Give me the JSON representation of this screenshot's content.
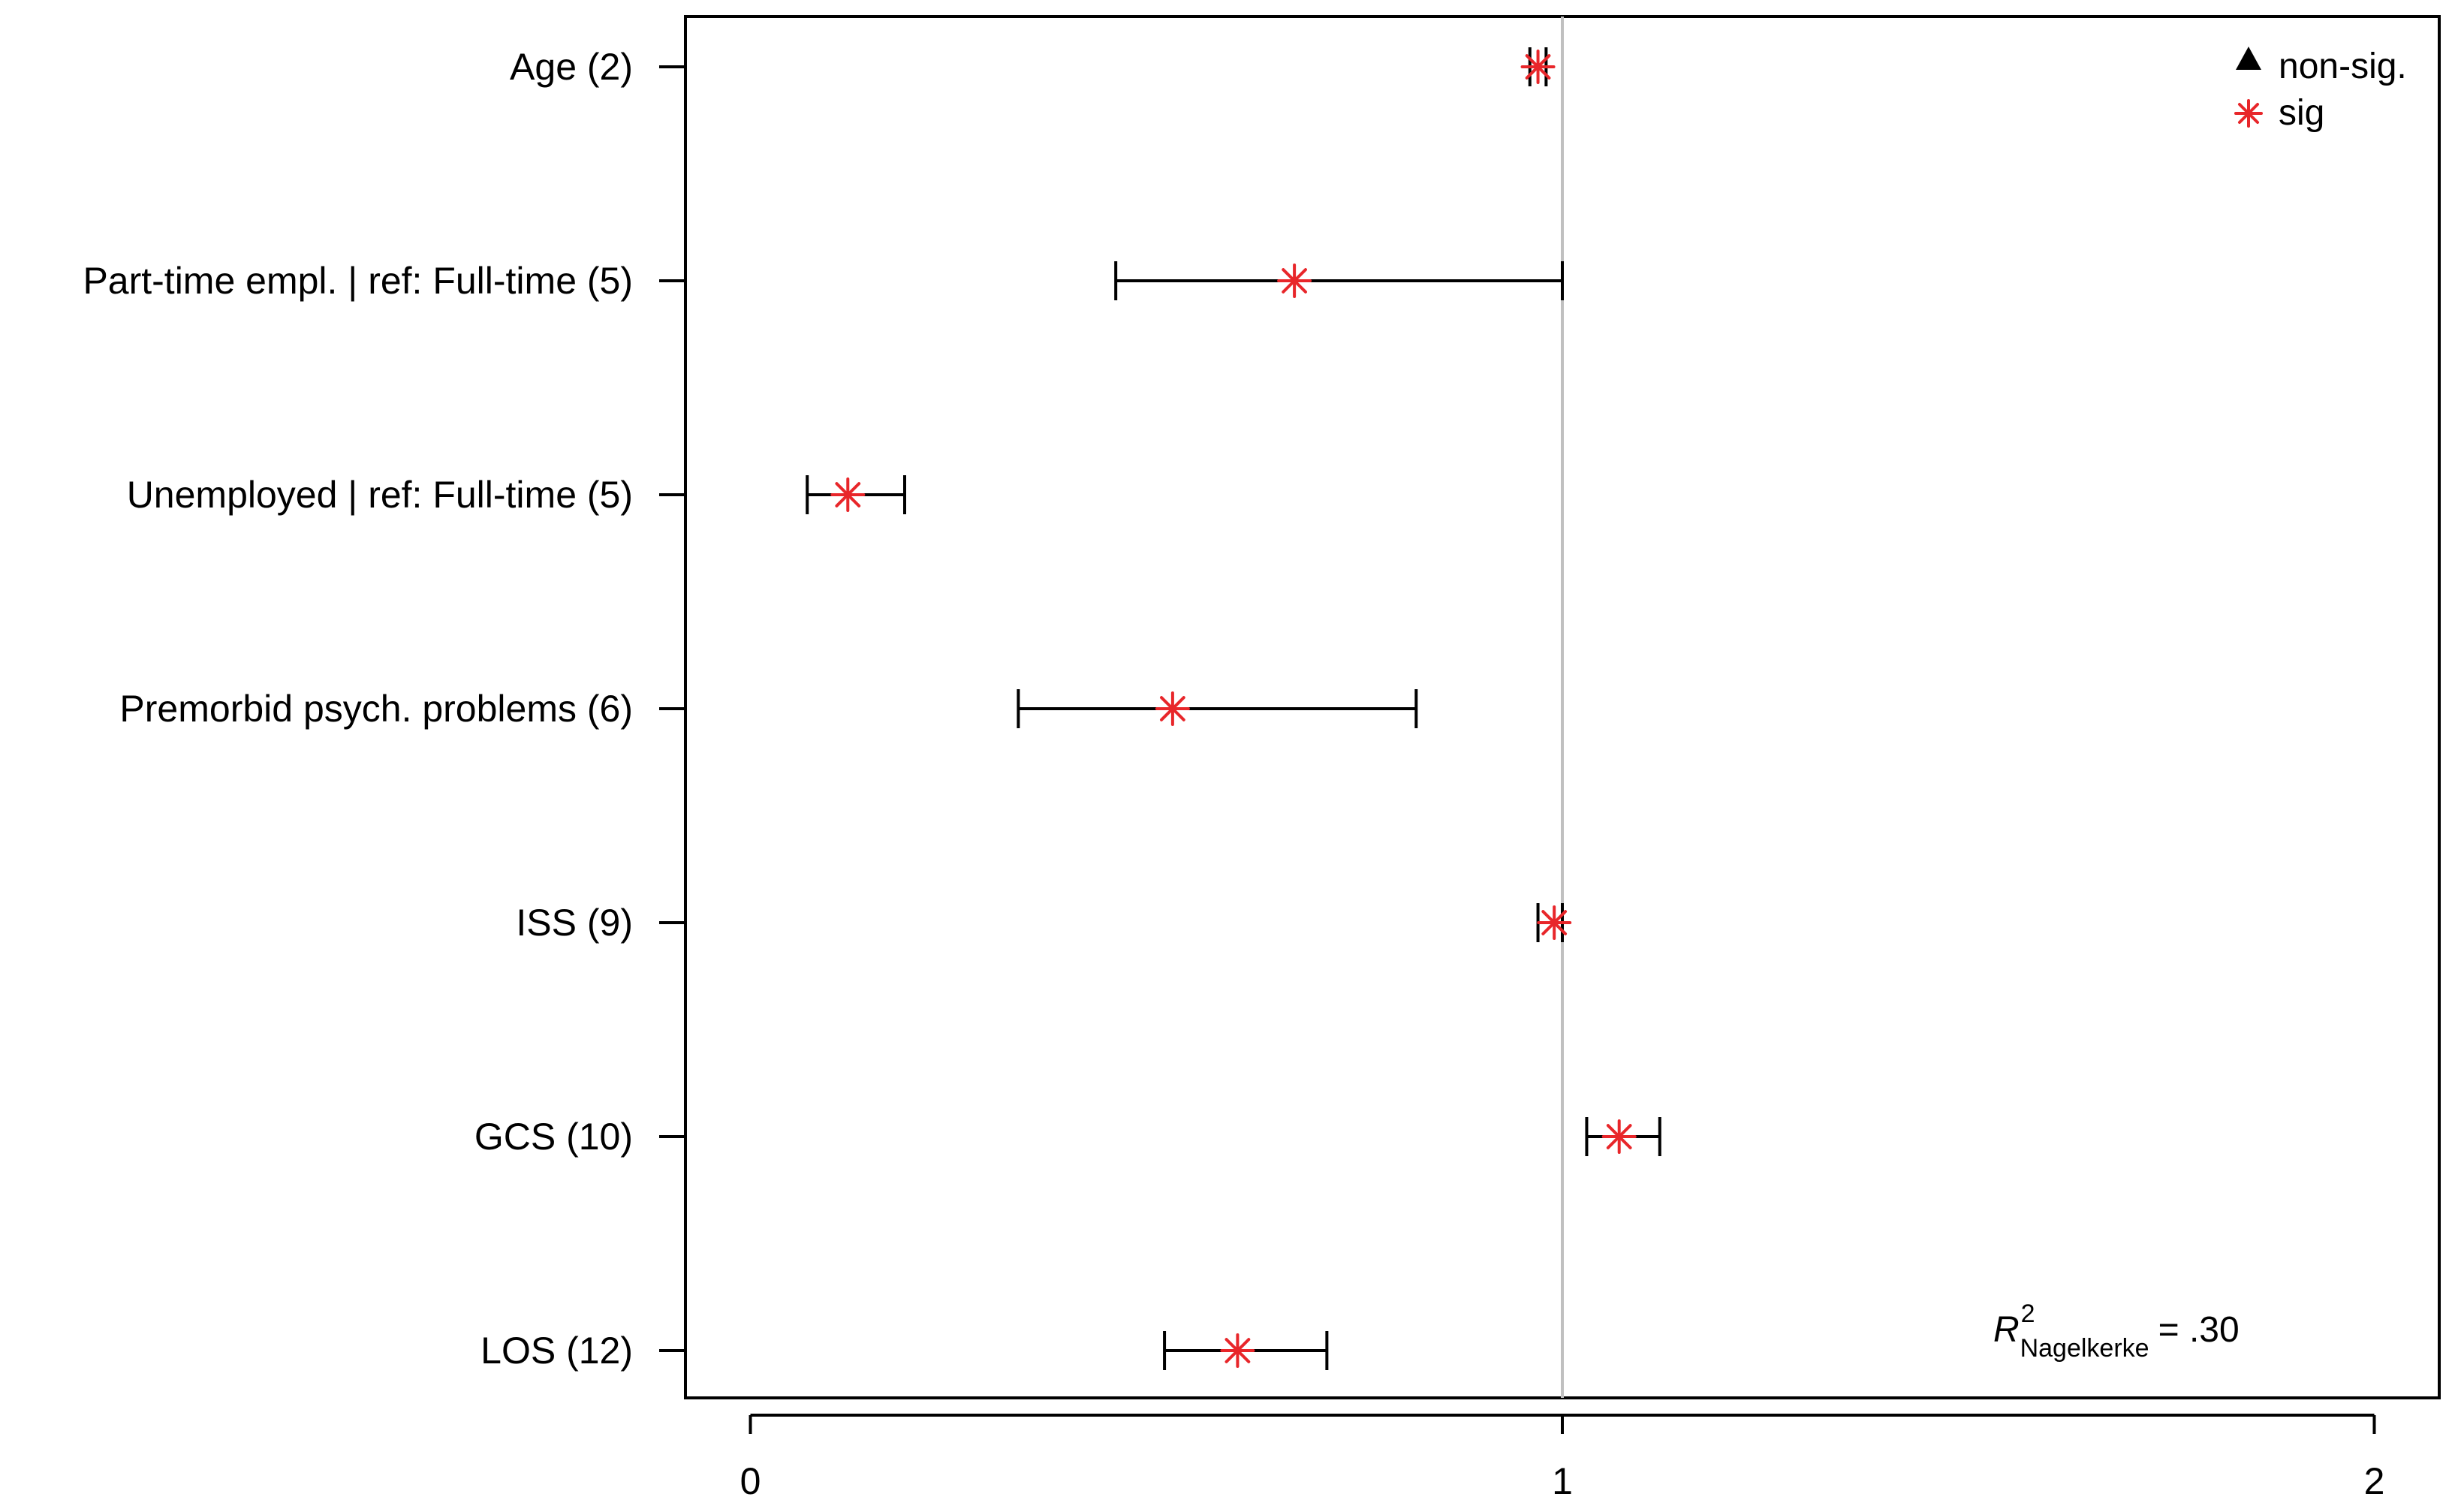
{
  "chart_data": {
    "type": "scatter",
    "title": "",
    "xlabel": "",
    "ylabel": "",
    "xlim": [
      -0.08,
      2.08
    ],
    "x_ticks": [
      "0",
      "1",
      "2"
    ],
    "x_tick_values": [
      0,
      1,
      2
    ],
    "reference_line": 1,
    "categories": [
      "Age (2)",
      "Part-time empl. | ref: Full-time (5)",
      "Unemployed | ref: Full-time (5)",
      "Premorbid psych. problems (6)",
      "ISS (9)",
      "GCS (10)",
      "LOS (12)"
    ],
    "series": [
      {
        "name": "sig",
        "estimate": [
          0.97,
          0.67,
          0.12,
          0.52,
          0.99,
          1.07,
          0.6
        ],
        "ci_low": [
          0.96,
          0.45,
          0.07,
          0.33,
          0.97,
          1.03,
          0.51
        ],
        "ci_high": [
          0.98,
          1.0,
          0.19,
          0.82,
          1.0,
          1.12,
          0.71
        ]
      }
    ],
    "legend": {
      "placement": "top-right",
      "entries": [
        {
          "label": "non-sig.",
          "marker": "triangle",
          "color": "#000000"
        },
        {
          "label": "sig",
          "marker": "asterisk",
          "color": "#e8262a"
        }
      ]
    },
    "annotation": {
      "symbol": "R",
      "superscript": "2",
      "subscript": "Nagelkerke",
      "value": "= .30"
    },
    "colors": {
      "sig": "#e8262a",
      "nonsig": "#000000",
      "reference_line": "#c0c0c0",
      "axis": "#000000"
    }
  }
}
